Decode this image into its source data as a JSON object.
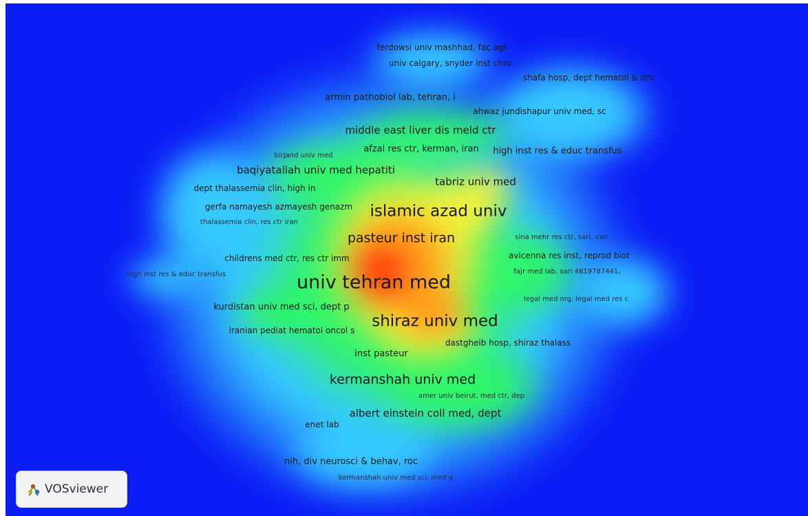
{
  "app": {
    "name": "VOSviewer",
    "view": "density visualization",
    "logo_icon": "vosviewer-logo-icon",
    "background_color": "#0b1cf6",
    "density_colors": [
      "#0b1cf6",
      "#36c9ff",
      "#2ff56a",
      "#f3f13a",
      "#ff9a1a",
      "#ff2a0a"
    ]
  },
  "labels": [
    {
      "id": "univ-tehran-med",
      "text": "univ tehran med"
    },
    {
      "id": "shiraz-univ-med",
      "text": "shiraz univ med"
    },
    {
      "id": "islamic-azad-univ",
      "text": "islamic azad univ"
    },
    {
      "id": "pasteur-inst-iran",
      "text": "pasteur inst iran"
    },
    {
      "id": "kermanshah-univ-med",
      "text": "kermanshah univ med"
    },
    {
      "id": "tabriz-univ-med",
      "text": "tabriz univ med"
    },
    {
      "id": "middle-east-liver",
      "text": "middle east liver dis meld ctr"
    },
    {
      "id": "baqiyatallah",
      "text": "baqiyatallah univ med hepatiti"
    },
    {
      "id": "albert-einstein",
      "text": "albert einstein coll med, dept"
    },
    {
      "id": "kurdistan",
      "text": "kurdistan univ med sci, dept p"
    },
    {
      "id": "inst-pasteur",
      "text": "inst pasteur"
    },
    {
      "id": "nih-div-neurosci",
      "text": "nih, div neurosci & behav, roc"
    },
    {
      "id": "afzal-res-ctr",
      "text": "afzal res ctr, kerman, iran"
    },
    {
      "id": "high-inst-res-top",
      "text": "high inst res & educ transfus"
    },
    {
      "id": "armin-pathobiol",
      "text": "armin pathobiol lab, tehran, i"
    },
    {
      "id": "ahwaz-jundishapur",
      "text": "ahwaz jundishapur univ med, sc"
    },
    {
      "id": "dept-thalassemia",
      "text": "dept thalassemia clin, high in"
    },
    {
      "id": "gerfa-namayesh",
      "text": "gerfa namayesh azmayesh genazm"
    },
    {
      "id": "childrens-med-ctr",
      "text": "childrens med ctr, res ctr imm"
    },
    {
      "id": "iranian-pediat",
      "text": "iranian pediat hematol oncol s"
    },
    {
      "id": "dastgheib-hosp",
      "text": "dastgheib hosp, shiraz thalass"
    },
    {
      "id": "avicenna-res-inst",
      "text": "avicenna res inst, reprod biot"
    },
    {
      "id": "enet-lab",
      "text": "enet lab"
    },
    {
      "id": "ferdowsi-univ",
      "text": "ferdowsi univ mashhad, fac agr"
    },
    {
      "id": "univ-calgary",
      "text": "univ calgary, snyder inst chro"
    },
    {
      "id": "shafa-hosp",
      "text": "shafa hosp, dept hematol & onc"
    },
    {
      "id": "birjand-univ",
      "text": "birjand univ med"
    },
    {
      "id": "thalassemia-clin",
      "text": "thalassemia clin, res ctr iran"
    },
    {
      "id": "sina-mehr",
      "text": "sina mehr res ctr, sari, iran"
    },
    {
      "id": "fajr-med-lab",
      "text": "fajr med lab, sari 4819787441,"
    },
    {
      "id": "high-inst-res-left",
      "text": "high inst res & educ transfus"
    },
    {
      "id": "legal-med-org",
      "text": "legal med org, legal med res c"
    },
    {
      "id": "amer-univ-beirut",
      "text": "amer univ beirut, med ctr, dep"
    },
    {
      "id": "kermanshah-univ-med-sci",
      "text": "kermanshah univ med sci, med g"
    }
  ]
}
